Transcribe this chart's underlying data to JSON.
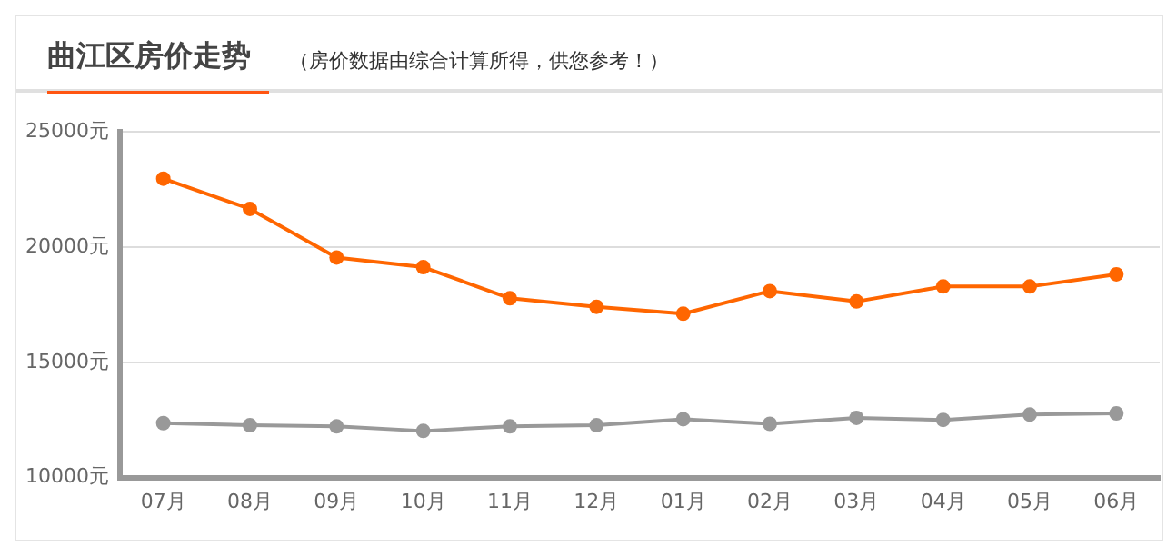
{
  "chart_data": {
    "type": "line",
    "title": "曲江区房价走势",
    "subtitle": "（房价数据由综合计算所得，供您参考！）",
    "categories": [
      "07月",
      "08月",
      "09月",
      "10月",
      "11月",
      "12月",
      "01月",
      "02月",
      "03月",
      "04月",
      "05月",
      "06月"
    ],
    "series": [
      {
        "color": "#ff6600",
        "values": [
          22970,
          21660,
          19550,
          19130,
          17780,
          17410,
          17110,
          18090,
          17640,
          18290,
          18290,
          18820
        ]
      },
      {
        "color": "#999999",
        "values": [
          12360,
          12270,
          12220,
          12020,
          12220,
          12270,
          12530,
          12330,
          12590,
          12500,
          12730,
          12780
        ]
      }
    ],
    "ylim": [
      10000,
      25000
    ],
    "yticks": [
      {
        "value": 10000,
        "label": "10000元"
      },
      {
        "value": 15000,
        "label": "15000元"
      },
      {
        "value": 20000,
        "label": "20000元"
      },
      {
        "value": 25000,
        "label": "25000元"
      }
    ],
    "grid": "y",
    "legend": false,
    "marker": "circle",
    "line_style": "solid"
  }
}
